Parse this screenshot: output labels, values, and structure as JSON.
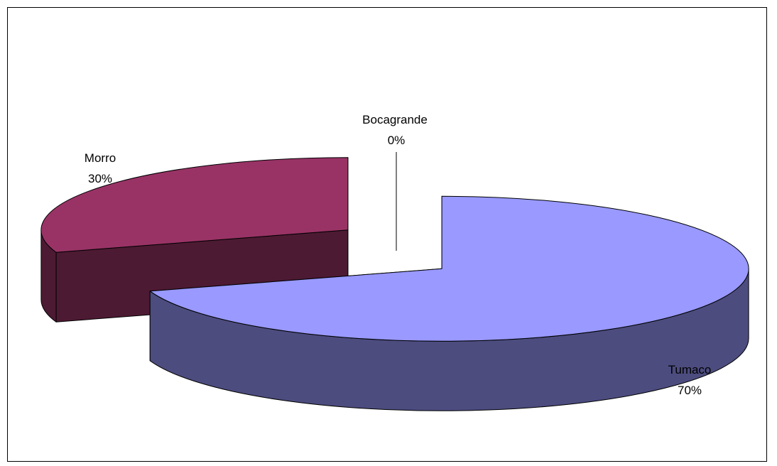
{
  "chart_data": {
    "type": "pie",
    "style": "3d-exploded",
    "categories": [
      "Tumaco",
      "Morro",
      "Bocagrande"
    ],
    "values": [
      70,
      30,
      0
    ],
    "labels": [
      {
        "name": "Tumaco",
        "percent": "70%"
      },
      {
        "name": "Morro",
        "percent": "30%"
      },
      {
        "name": "Bocagrande",
        "percent": "0%"
      }
    ],
    "colors": {
      "Tumaco": {
        "top": "#9999ff",
        "side": "#4c4c7f"
      },
      "Morro": {
        "top": "#993366",
        "side": "#4d1a33"
      },
      "Bocagrande": {
        "top": "#ffffcc",
        "side": "#80806a"
      }
    },
    "legend": "none"
  }
}
